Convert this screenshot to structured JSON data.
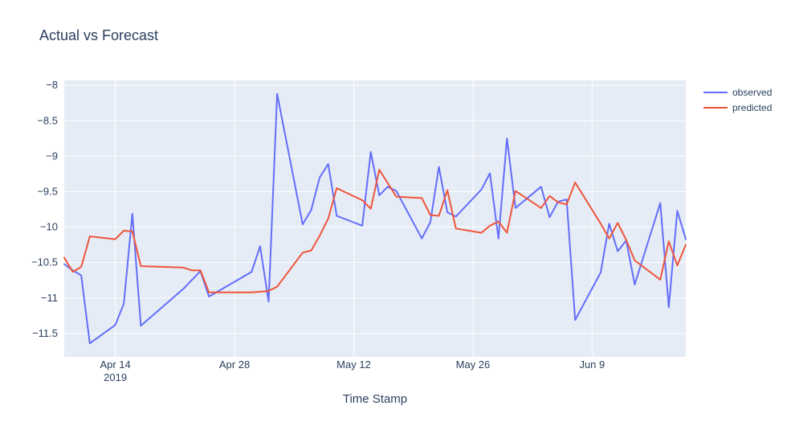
{
  "chart_data": {
    "type": "line",
    "title": "Actual vs Forecast",
    "xlabel": "Time Stamp",
    "ylabel": "",
    "x_axis": {
      "type": "date",
      "range": [
        "2019-04-08",
        "2019-06-20"
      ],
      "ticks": [
        {
          "date": "2019-04-14",
          "label": "Apr 14",
          "sublabel": "2019"
        },
        {
          "date": "2019-04-28",
          "label": "Apr 28",
          "sublabel": ""
        },
        {
          "date": "2019-05-12",
          "label": "May 12",
          "sublabel": ""
        },
        {
          "date": "2019-05-26",
          "label": "May 26",
          "sublabel": ""
        },
        {
          "date": "2019-06-09",
          "label": "Jun 9",
          "sublabel": ""
        }
      ]
    },
    "y_axis": {
      "range": [
        -11.83,
        -7.93
      ],
      "ticks": [
        {
          "value": -8,
          "label": "−8"
        },
        {
          "value": -8.5,
          "label": "−8.5"
        },
        {
          "value": -9,
          "label": "−9"
        },
        {
          "value": -9.5,
          "label": "−9.5"
        },
        {
          "value": -10,
          "label": "−10"
        },
        {
          "value": -10.5,
          "label": "−10.5"
        },
        {
          "value": -11,
          "label": "−11"
        },
        {
          "value": -11.5,
          "label": "−11.5"
        }
      ]
    },
    "grid": true,
    "legend": "top-right",
    "series": [
      {
        "name": "observed",
        "color": "#636efa",
        "x": [
          "2019-04-08",
          "2019-04-09",
          "2019-04-10",
          "2019-04-11",
          "2019-04-14",
          "2019-04-15",
          "2019-04-16",
          "2019-04-17",
          "2019-04-22",
          "2019-04-24",
          "2019-04-25",
          "2019-04-30",
          "2019-05-01",
          "2019-05-02",
          "2019-05-03",
          "2019-05-06",
          "2019-05-07",
          "2019-05-08",
          "2019-05-09",
          "2019-05-10",
          "2019-05-13",
          "2019-05-14",
          "2019-05-15",
          "2019-05-16",
          "2019-05-17",
          "2019-05-20",
          "2019-05-21",
          "2019-05-22",
          "2019-05-23",
          "2019-05-24",
          "2019-05-27",
          "2019-05-28",
          "2019-05-29",
          "2019-05-30",
          "2019-05-31",
          "2019-06-03",
          "2019-06-04",
          "2019-06-05",
          "2019-06-06",
          "2019-06-07",
          "2019-06-10",
          "2019-06-11",
          "2019-06-12",
          "2019-06-13",
          "2019-06-14",
          "2019-06-17",
          "2019-06-18",
          "2019-06-19",
          "2019-06-20"
        ],
        "y": [
          -10.52,
          -10.61,
          -10.68,
          -11.64,
          -11.38,
          -11.08,
          -9.81,
          -11.39,
          -10.87,
          -10.62,
          -10.98,
          -10.63,
          -10.27,
          -11.05,
          -8.12,
          -9.96,
          -9.76,
          -9.3,
          -9.11,
          -9.84,
          -9.98,
          -8.94,
          -9.55,
          -9.43,
          -9.49,
          -10.16,
          -9.93,
          -9.15,
          -9.79,
          -9.85,
          -9.47,
          -9.24,
          -10.16,
          -8.75,
          -9.73,
          -9.43,
          -9.86,
          -9.64,
          -9.61,
          -11.31,
          -10.64,
          -9.95,
          -10.34,
          -10.19,
          -10.81,
          -9.66,
          -11.13,
          -9.77,
          -10.17
        ]
      },
      {
        "name": "predicted",
        "color": "#ef553b",
        "x": [
          "2019-04-08",
          "2019-04-09",
          "2019-04-10",
          "2019-04-11",
          "2019-04-14",
          "2019-04-15",
          "2019-04-16",
          "2019-04-17",
          "2019-04-22",
          "2019-04-23",
          "2019-04-24",
          "2019-04-25",
          "2019-04-30",
          "2019-05-02",
          "2019-05-03",
          "2019-05-06",
          "2019-05-07",
          "2019-05-08",
          "2019-05-09",
          "2019-05-10",
          "2019-05-13",
          "2019-05-14",
          "2019-05-15",
          "2019-05-16",
          "2019-05-17",
          "2019-05-20",
          "2019-05-21",
          "2019-05-22",
          "2019-05-23",
          "2019-05-24",
          "2019-05-27",
          "2019-05-28",
          "2019-05-29",
          "2019-05-30",
          "2019-05-31",
          "2019-06-03",
          "2019-06-04",
          "2019-06-05",
          "2019-06-06",
          "2019-06-07",
          "2019-06-10",
          "2019-06-11",
          "2019-06-12",
          "2019-06-13",
          "2019-06-14",
          "2019-06-17",
          "2019-06-18",
          "2019-06-19",
          "2019-06-20"
        ],
        "y": [
          -10.43,
          -10.63,
          -10.56,
          -10.13,
          -10.17,
          -10.05,
          -10.06,
          -10.55,
          -10.57,
          -10.61,
          -10.61,
          -10.92,
          -10.92,
          -10.9,
          -10.84,
          -10.36,
          -10.33,
          -10.12,
          -9.88,
          -9.45,
          -9.62,
          -9.74,
          -9.19,
          -9.38,
          -9.57,
          -9.59,
          -9.83,
          -9.84,
          -9.48,
          -10.02,
          -10.08,
          -9.98,
          -9.92,
          -10.08,
          -9.49,
          -9.73,
          -9.56,
          -9.65,
          -9.68,
          -9.37,
          -9.95,
          -10.16,
          -9.94,
          -10.18,
          -10.47,
          -10.74,
          -10.2,
          -10.54,
          -10.25
        ]
      }
    ]
  }
}
